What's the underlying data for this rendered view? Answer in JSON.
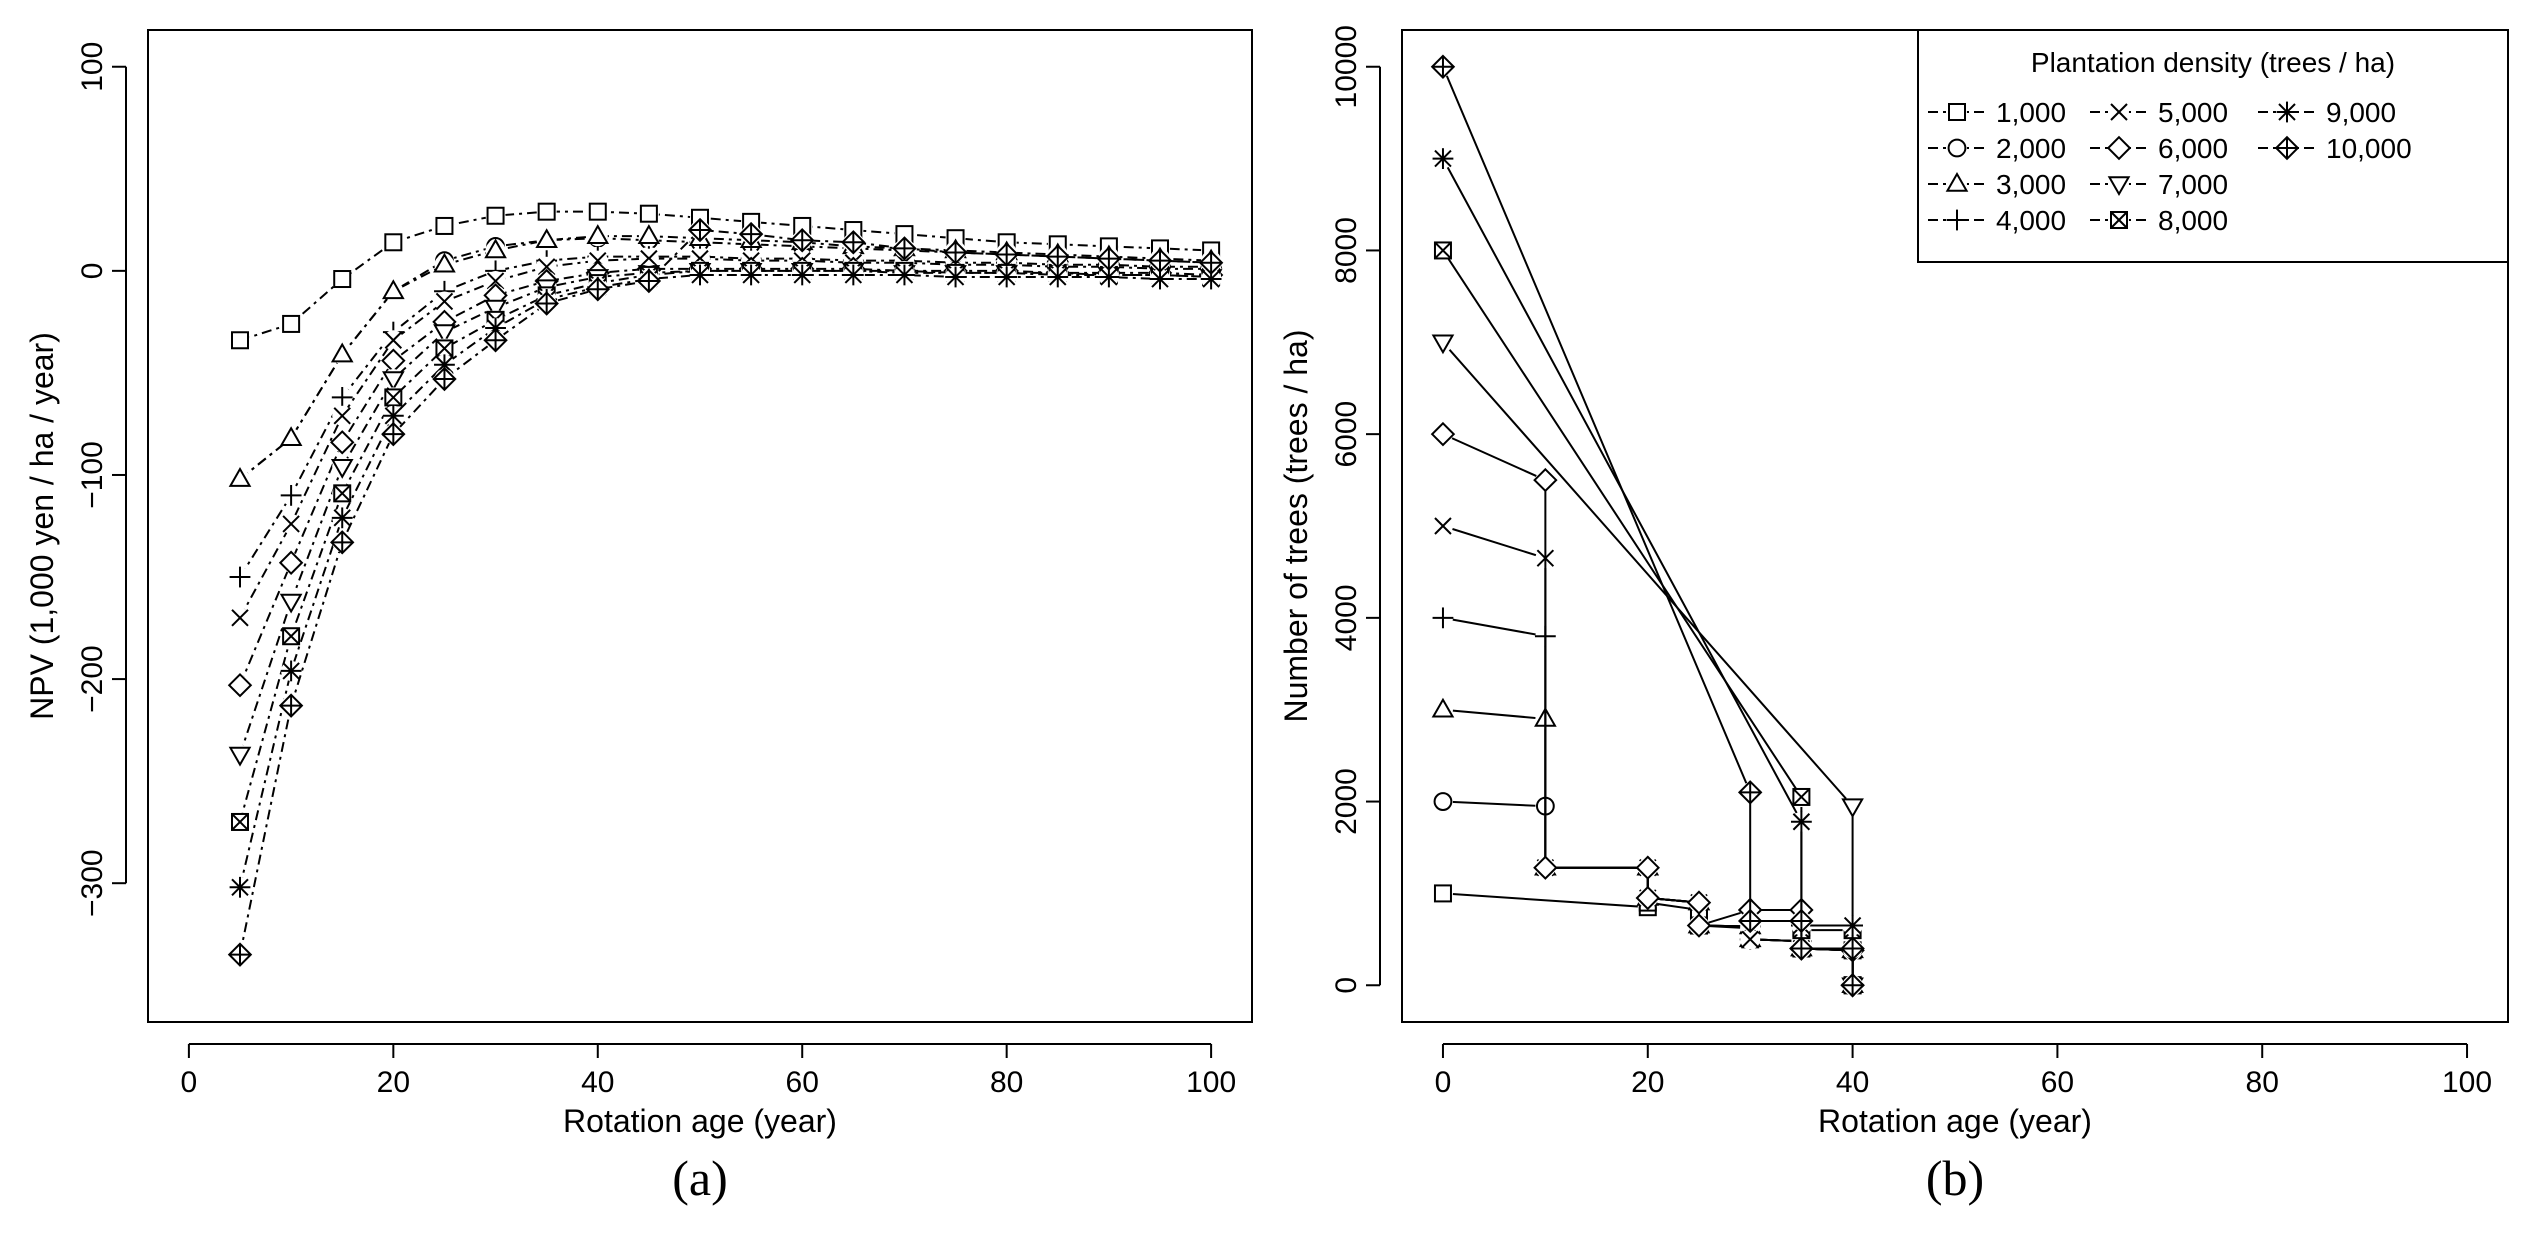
{
  "chart_data": [
    {
      "type": "line",
      "panel": "a",
      "caption": "(a)",
      "xlabel": "Rotation age (year)",
      "ylabel": "NPV (1,000 yen / ha / year)",
      "xlim": [
        -4,
        104
      ],
      "ylim": [
        -368,
        118
      ],
      "xticks": [
        0,
        20,
        40,
        60,
        80,
        100
      ],
      "yticks": [
        -300,
        -200,
        -100,
        0,
        100
      ],
      "xtick_labels": [
        "0",
        "20",
        "40",
        "60",
        "80",
        "100"
      ],
      "ytick_labels": [
        "−300",
        "−200",
        "−100",
        "0",
        "100"
      ],
      "x": [
        5,
        10,
        15,
        20,
        25,
        30,
        35,
        40,
        45,
        50,
        55,
        60,
        65,
        70,
        75,
        80,
        85,
        90,
        95,
        100
      ],
      "series": [
        {
          "name": "1,000",
          "marker": "square",
          "values": [
            -34,
            -26,
            -4,
            14,
            22,
            27,
            29,
            29,
            28,
            26,
            24,
            22,
            20,
            18,
            16,
            14,
            13,
            12,
            11,
            10
          ]
        },
        {
          "name": "2,000",
          "marker": "circle",
          "values": [
            -102,
            -82,
            -41,
            -10,
            5,
            12,
            15,
            16,
            15,
            14,
            13,
            12,
            11,
            10,
            9,
            8,
            7,
            6,
            5,
            4
          ]
        },
        {
          "name": "3,000",
          "marker": "triangle-up",
          "values": [
            -102,
            -82,
            -41,
            -10,
            3,
            10,
            15,
            17,
            17,
            16,
            15,
            14,
            12,
            11,
            10,
            9,
            8,
            7,
            6,
            5
          ]
        },
        {
          "name": "4,000",
          "marker": "plus",
          "values": [
            -150,
            -110,
            -62,
            -30,
            -10,
            0,
            5,
            7,
            7,
            7,
            6,
            6,
            5,
            5,
            4,
            4,
            3,
            3,
            2,
            2
          ]
        },
        {
          "name": "5,000",
          "marker": "cross",
          "values": [
            -170,
            -124,
            -71,
            -34,
            -15,
            -5,
            2,
            5,
            6,
            6,
            5,
            5,
            4,
            4,
            3,
            3,
            2,
            2,
            1,
            1
          ]
        },
        {
          "name": "6,000",
          "marker": "diamond",
          "values": [
            -203,
            -143,
            -84,
            -44,
            -25,
            -12,
            -5,
            -1,
            1,
            1,
            1,
            1,
            1,
            0,
            0,
            0,
            -1,
            -1,
            -1,
            -2
          ]
        },
        {
          "name": "7,000",
          "marker": "triangle-down",
          "values": [
            -237,
            -162,
            -96,
            -53,
            -30,
            -18,
            -8,
            -3,
            -1,
            0,
            0,
            0,
            0,
            -1,
            -1,
            -1,
            -2,
            -2,
            -2,
            -3
          ]
        },
        {
          "name": "8,000",
          "marker": "square-x",
          "values": [
            -270,
            -179,
            -109,
            -62,
            -38,
            -24,
            -12,
            -6,
            -2,
            0,
            0,
            0,
            0,
            0,
            -1,
            -1,
            -1,
            -2,
            -2,
            -3
          ]
        },
        {
          "name": "9,000",
          "marker": "asterisk",
          "values": [
            -302,
            -196,
            -121,
            -71,
            -46,
            -28,
            -14,
            -8,
            -4,
            -2,
            -2,
            -2,
            -2,
            -2,
            -3,
            -3,
            -3,
            -3,
            -4,
            -4
          ]
        },
        {
          "name": "10,000",
          "marker": "diamond-plus",
          "values": [
            -335,
            -213,
            -133,
            -80,
            -53,
            -34,
            -16,
            -9,
            -5,
            20,
            18,
            15,
            14,
            11,
            9,
            8,
            7,
            6,
            5,
            4
          ]
        }
      ]
    },
    {
      "type": "line",
      "panel": "b",
      "caption": "(b)",
      "xlabel": "Rotation age (year)",
      "ylabel": "Number of trees (trees / ha)",
      "xlim": [
        -4,
        104
      ],
      "ylim": [
        -400,
        10400
      ],
      "xticks": [
        0,
        20,
        40,
        60,
        80,
        100
      ],
      "yticks": [
        0,
        2000,
        4000,
        6000,
        8000,
        10000
      ],
      "xtick_labels": [
        "0",
        "20",
        "40",
        "60",
        "80",
        "100"
      ],
      "ytick_labels": [
        "0",
        "2000",
        "4000",
        "6000",
        "8000",
        "10000"
      ],
      "legend": {
        "title": "Plantation density (trees / ha)",
        "position": "top-right",
        "columns": 3,
        "entries": [
          "1,000",
          "2,000",
          "3,000",
          "4,000",
          "5,000",
          "6,000",
          "7,000",
          "8,000",
          "9,000",
          "10,000"
        ]
      },
      "series": [
        {
          "name": "1,000",
          "marker": "square",
          "x": [
            0,
            20,
            20,
            25,
            25,
            30,
            30,
            35,
            35,
            40,
            40
          ],
          "values": [
            1000,
            850,
            900,
            820,
            650,
            620,
            500,
            480,
            400,
            380,
            0
          ]
        },
        {
          "name": "2,000",
          "marker": "circle",
          "x": [
            0,
            10,
            10,
            20,
            20,
            25,
            25,
            30,
            30,
            35,
            35,
            40,
            40
          ],
          "values": [
            2000,
            1950,
            1280,
            1280,
            950,
            900,
            650,
            640,
            500,
            480,
            400,
            380,
            0
          ]
        },
        {
          "name": "3,000",
          "marker": "triangle-up",
          "x": [
            0,
            10,
            10,
            20,
            20,
            25,
            25,
            30,
            30,
            35,
            35,
            40,
            40
          ],
          "values": [
            3000,
            2900,
            1280,
            1280,
            950,
            900,
            650,
            640,
            500,
            480,
            400,
            380,
            0
          ]
        },
        {
          "name": "4,000",
          "marker": "plus",
          "x": [
            0,
            10,
            10,
            20,
            20,
            25,
            25,
            30,
            30,
            35,
            35,
            40,
            40
          ],
          "values": [
            4000,
            3800,
            1280,
            1280,
            950,
            900,
            650,
            640,
            500,
            480,
            400,
            380,
            0
          ]
        },
        {
          "name": "5,000",
          "marker": "cross",
          "x": [
            0,
            10,
            10,
            20,
            20,
            25,
            25,
            30,
            30,
            35,
            35,
            40,
            40
          ],
          "values": [
            5000,
            4650,
            1280,
            1280,
            950,
            900,
            650,
            640,
            500,
            480,
            400,
            380,
            0
          ]
        },
        {
          "name": "6,000",
          "marker": "diamond",
          "x": [
            0,
            10,
            10,
            20,
            20,
            25,
            25,
            30,
            30,
            35,
            35,
            40,
            40
          ],
          "values": [
            6000,
            5500,
            1280,
            1280,
            950,
            900,
            650,
            820,
            820,
            820,
            400,
            380,
            0
          ]
        },
        {
          "name": "7,000",
          "marker": "triangle-down",
          "x": [
            0,
            40,
            40
          ],
          "values": [
            7000,
            1950,
            0
          ]
        },
        {
          "name": "8,000",
          "marker": "square-x",
          "x": [
            0,
            35,
            35,
            40,
            40
          ],
          "values": [
            8000,
            2050,
            600,
            600,
            0
          ]
        },
        {
          "name": "9,000",
          "marker": "asterisk",
          "x": [
            0,
            35,
            35,
            40,
            40
          ],
          "values": [
            9000,
            1780,
            650,
            650,
            0
          ]
        },
        {
          "name": "10,000",
          "marker": "diamond-plus",
          "x": [
            0,
            30,
            30,
            35,
            35,
            40,
            40
          ],
          "values": [
            10000,
            2100,
            700,
            700,
            400,
            400,
            0
          ]
        }
      ]
    }
  ]
}
